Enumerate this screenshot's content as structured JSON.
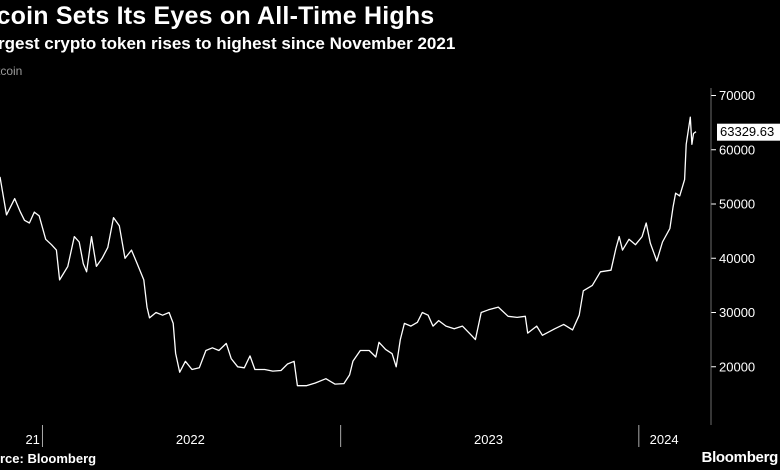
{
  "header": {
    "title": "tcoin Sets Its Eyes on All-Time Highs",
    "subtitle": "rgest crypto token rises to highest since November 2021",
    "series_label": "tcoin"
  },
  "footer": {
    "source": "rce: Bloomberg",
    "brand": "Bloomberg"
  },
  "chart_data": {
    "type": "line",
    "title": "tcoin Sets Its Eyes on All-Time Highs",
    "subtitle": "rgest crypto token rises to highest since November 2021",
    "y_axis_side": "right",
    "ylim": [
      10000,
      70000
    ],
    "y_ticks": [
      20000,
      30000,
      40000,
      50000,
      60000,
      70000
    ],
    "y_tick_labels": [
      "20000",
      "30000",
      "40000",
      "50000",
      "60000",
      "70000"
    ],
    "x_range": [
      "2021-11-10",
      "2024-03-11"
    ],
    "x_tick_labels": [
      {
        "date": "2021-12-20",
        "label": "21"
      },
      {
        "date": "2022-07-01",
        "label": "2022"
      },
      {
        "date": "2023-07-01",
        "label": "2023"
      },
      {
        "date": "2024-02-01",
        "label": "2024"
      }
    ],
    "x_tick_marks": [
      "2022-01-01",
      "2023-01-01",
      "2024-01-01"
    ],
    "grid": false,
    "last_value_label": "63329.63",
    "series": [
      {
        "color": "#ffffff",
        "points": [
          [
            "2021-11-10",
            55000
          ],
          [
            "2021-11-18",
            48000
          ],
          [
            "2021-11-28",
            51000
          ],
          [
            "2021-12-05",
            48500
          ],
          [
            "2021-12-10",
            47000
          ],
          [
            "2021-12-16",
            46500
          ],
          [
            "2021-12-22",
            48500
          ],
          [
            "2021-12-28",
            47800
          ],
          [
            "2022-01-05",
            43500
          ],
          [
            "2022-01-12",
            42500
          ],
          [
            "2022-01-18",
            41500
          ],
          [
            "2022-01-22",
            36000
          ],
          [
            "2022-01-26",
            37000
          ],
          [
            "2022-02-01",
            38500
          ],
          [
            "2022-02-09",
            44000
          ],
          [
            "2022-02-15",
            43000
          ],
          [
            "2022-02-20",
            39000
          ],
          [
            "2022-02-24",
            37500
          ],
          [
            "2022-03-02",
            44000
          ],
          [
            "2022-03-08",
            38500
          ],
          [
            "2022-03-15",
            40000
          ],
          [
            "2022-03-22",
            42000
          ],
          [
            "2022-03-29",
            47500
          ],
          [
            "2022-04-05",
            46000
          ],
          [
            "2022-04-12",
            40000
          ],
          [
            "2022-04-20",
            41500
          ],
          [
            "2022-04-27",
            39000
          ],
          [
            "2022-05-05",
            36000
          ],
          [
            "2022-05-09",
            31000
          ],
          [
            "2022-05-12",
            29000
          ],
          [
            "2022-05-20",
            30000
          ],
          [
            "2022-05-28",
            29500
          ],
          [
            "2022-06-05",
            30000
          ],
          [
            "2022-06-10",
            28000
          ],
          [
            "2022-06-13",
            22500
          ],
          [
            "2022-06-18",
            19000
          ],
          [
            "2022-06-25",
            21000
          ],
          [
            "2022-07-03",
            19500
          ],
          [
            "2022-07-12",
            19800
          ],
          [
            "2022-07-20",
            23000
          ],
          [
            "2022-07-28",
            23500
          ],
          [
            "2022-08-05",
            23000
          ],
          [
            "2022-08-14",
            24300
          ],
          [
            "2022-08-20",
            21500
          ],
          [
            "2022-08-28",
            20000
          ],
          [
            "2022-09-05",
            19800
          ],
          [
            "2022-09-12",
            22000
          ],
          [
            "2022-09-18",
            19500
          ],
          [
            "2022-09-30",
            19500
          ],
          [
            "2022-10-10",
            19200
          ],
          [
            "2022-10-20",
            19300
          ],
          [
            "2022-10-28",
            20500
          ],
          [
            "2022-11-05",
            21000
          ],
          [
            "2022-11-09",
            16500
          ],
          [
            "2022-11-20",
            16500
          ],
          [
            "2022-12-01",
            17000
          ],
          [
            "2022-12-14",
            17800
          ],
          [
            "2022-12-25",
            16800
          ],
          [
            "2023-01-05",
            16900
          ],
          [
            "2023-01-12",
            18500
          ],
          [
            "2023-01-16",
            21000
          ],
          [
            "2023-01-25",
            23000
          ],
          [
            "2023-02-05",
            23000
          ],
          [
            "2023-02-13",
            21800
          ],
          [
            "2023-02-17",
            24500
          ],
          [
            "2023-02-25",
            23200
          ],
          [
            "2023-03-05",
            22400
          ],
          [
            "2023-03-10",
            20000
          ],
          [
            "2023-03-15",
            25000
          ],
          [
            "2023-03-20",
            28000
          ],
          [
            "2023-03-28",
            27500
          ],
          [
            "2023-04-05",
            28200
          ],
          [
            "2023-04-11",
            30000
          ],
          [
            "2023-04-18",
            29500
          ],
          [
            "2023-04-24",
            27500
          ],
          [
            "2023-05-01",
            28500
          ],
          [
            "2023-05-10",
            27500
          ],
          [
            "2023-05-20",
            27000
          ],
          [
            "2023-05-30",
            27500
          ],
          [
            "2023-06-10",
            25800
          ],
          [
            "2023-06-15",
            25000
          ],
          [
            "2023-06-22",
            30000
          ],
          [
            "2023-07-01",
            30500
          ],
          [
            "2023-07-13",
            31000
          ],
          [
            "2023-07-25",
            29300
          ],
          [
            "2023-08-05",
            29100
          ],
          [
            "2023-08-15",
            29300
          ],
          [
            "2023-08-18",
            26200
          ],
          [
            "2023-08-29",
            27500
          ],
          [
            "2023-09-05",
            25800
          ],
          [
            "2023-09-20",
            27000
          ],
          [
            "2023-10-01",
            27800
          ],
          [
            "2023-10-12",
            26800
          ],
          [
            "2023-10-20",
            29500
          ],
          [
            "2023-10-25",
            34000
          ],
          [
            "2023-11-05",
            35000
          ],
          [
            "2023-11-15",
            37500
          ],
          [
            "2023-11-28",
            37800
          ],
          [
            "2023-12-04",
            41800
          ],
          [
            "2023-12-08",
            44000
          ],
          [
            "2023-12-12",
            41500
          ],
          [
            "2023-12-20",
            43500
          ],
          [
            "2023-12-28",
            42500
          ],
          [
            "2024-01-05",
            44000
          ],
          [
            "2024-01-10",
            46500
          ],
          [
            "2024-01-15",
            42800
          ],
          [
            "2024-01-23",
            39500
          ],
          [
            "2024-01-30",
            43000
          ],
          [
            "2024-02-08",
            45500
          ],
          [
            "2024-02-12",
            49500
          ],
          [
            "2024-02-15",
            52000
          ],
          [
            "2024-02-20",
            51500
          ],
          [
            "2024-02-26",
            54500
          ],
          [
            "2024-02-28",
            61000
          ],
          [
            "2024-03-04",
            66000
          ],
          [
            "2024-03-06",
            61000
          ],
          [
            "2024-03-08",
            63000
          ],
          [
            "2024-03-11",
            63329.63
          ]
        ]
      }
    ]
  }
}
